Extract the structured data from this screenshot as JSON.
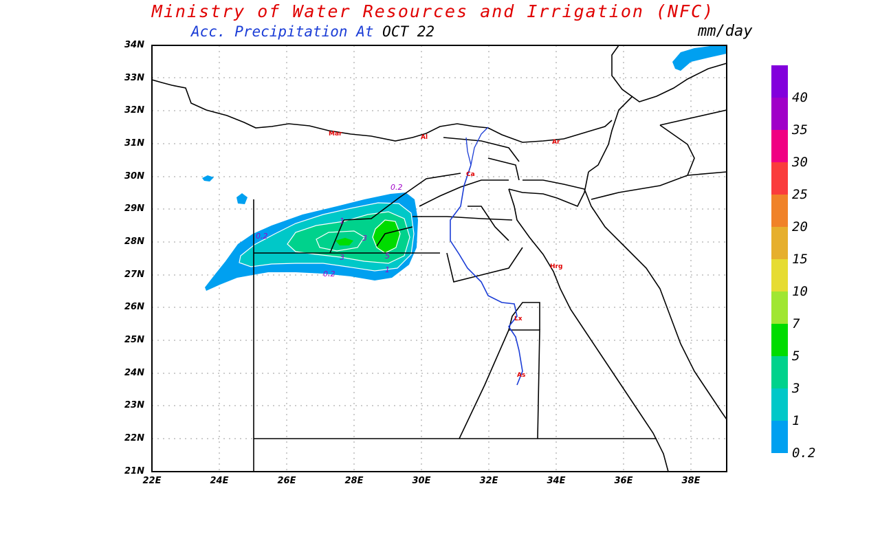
{
  "header": {
    "title": "Ministry of Water Resources and Irrigation (NFC)",
    "subtitle_blue": "Acc. Precipitation  At",
    "subtitle_date": "OCT 22",
    "units": "mm/day"
  },
  "axes": {
    "lat_labels": [
      "34N",
      "33N",
      "32N",
      "31N",
      "30N",
      "29N",
      "28N",
      "27N",
      "26N",
      "25N",
      "24N",
      "23N",
      "22N",
      "21N"
    ],
    "lon_labels": [
      "22E",
      "24E",
      "26E",
      "28E",
      "30E",
      "32E",
      "34E",
      "36E",
      "38E"
    ]
  },
  "colorbar": {
    "levels": [
      {
        "label": "0.2",
        "color": "#00a0f0"
      },
      {
        "label": "1",
        "color": "#00c8c8"
      },
      {
        "label": "3",
        "color": "#00d28c"
      },
      {
        "label": "5",
        "color": "#00dc00"
      },
      {
        "label": "7",
        "color": "#a0e632"
      },
      {
        "label": "10",
        "color": "#e6dc32"
      },
      {
        "label": "15",
        "color": "#e6af2d"
      },
      {
        "label": "20",
        "color": "#f08228"
      },
      {
        "label": "25",
        "color": "#fa3c3c"
      },
      {
        "label": "30",
        "color": "#f00082"
      },
      {
        "label": "35",
        "color": "#a000c8"
      },
      {
        "label": "40",
        "color": "#8200dc"
      },
      {
        "label": "",
        "color": "#6e00dc"
      }
    ]
  },
  "contour_labels": [
    "0.2",
    "0.2",
    "0.2",
    "1",
    "1",
    "3",
    "3",
    "5"
  ],
  "city_labels": [
    "Mar",
    "Al",
    "Ar",
    "Ca",
    "Hrg",
    "Lx",
    "As"
  ]
}
